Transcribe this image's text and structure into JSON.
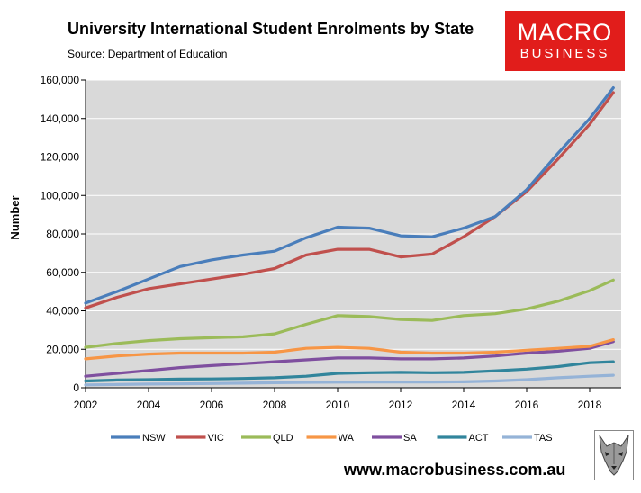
{
  "header": {
    "title": "University International Student Enrolments by State",
    "subtitle": "Source: Department of Education"
  },
  "logo": {
    "line1": "MACRO",
    "line2": "BUSINESS",
    "background": "#e11d1b",
    "text_color": "#ffffff"
  },
  "footer": {
    "url": "www.macrobusiness.com.au",
    "emblem_icon": "wolf-icon"
  },
  "colors": {
    "plot_background": "#d9d9d9",
    "gridline": "#ffffff"
  },
  "chart_data": {
    "type": "line",
    "title": "University International Student Enrolments by State",
    "xlabel": "",
    "ylabel": "Number",
    "xlim": [
      2002,
      2019
    ],
    "ylim": [
      0,
      160000
    ],
    "yticks": [
      0,
      20000,
      40000,
      60000,
      80000,
      100000,
      120000,
      140000,
      160000
    ],
    "ytick_labels": [
      "0",
      "20,000",
      "40,000",
      "60,000",
      "80,000",
      "100,000",
      "120,000",
      "140,000",
      "160,000"
    ],
    "xticks": [
      2002,
      2004,
      2006,
      2008,
      2010,
      2012,
      2014,
      2016,
      2018
    ],
    "xtick_labels": [
      "2002",
      "2004",
      "2006",
      "2008",
      "2010",
      "2012",
      "2014",
      "2016",
      "2018"
    ],
    "grid": true,
    "legend_position": "bottom",
    "x": [
      2002,
      2003,
      2004,
      2005,
      2006,
      2007,
      2008,
      2009,
      2010,
      2011,
      2012,
      2013,
      2014,
      2015,
      2016,
      2017,
      2018,
      2018.75
    ],
    "series": [
      {
        "name": "NSW",
        "color": "#4a7ebb",
        "values": [
          44000,
          50000,
          56500,
          63000,
          66500,
          69000,
          71000,
          78000,
          83500,
          83000,
          79000,
          78500,
          83000,
          89000,
          103000,
          122000,
          140000,
          156000
        ]
      },
      {
        "name": "VIC",
        "color": "#c0504d",
        "values": [
          41500,
          47000,
          51500,
          54000,
          56500,
          59000,
          62000,
          69000,
          72000,
          72000,
          68000,
          69500,
          78500,
          89000,
          102000,
          119000,
          137000,
          153500
        ]
      },
      {
        "name": "QLD",
        "color": "#9bbb59",
        "values": [
          21000,
          23000,
          24500,
          25500,
          26000,
          26500,
          28000,
          33000,
          37500,
          37000,
          35500,
          35000,
          37500,
          38500,
          41000,
          45000,
          50500,
          56000
        ]
      },
      {
        "name": "WA",
        "color": "#f79646",
        "values": [
          15000,
          16500,
          17500,
          18000,
          18000,
          18000,
          18500,
          20500,
          21000,
          20500,
          18500,
          18000,
          18000,
          18500,
          19500,
          20500,
          21500,
          25000
        ]
      },
      {
        "name": "SA",
        "color": "#7f4f9f",
        "values": [
          6000,
          7500,
          9000,
          10500,
          11500,
          12500,
          13500,
          14500,
          15500,
          15500,
          15000,
          15000,
          15500,
          16500,
          18000,
          19000,
          20500,
          24000
        ]
      },
      {
        "name": "ACT",
        "color": "#31859c",
        "values": [
          3500,
          4000,
          4200,
          4500,
          4600,
          4800,
          5200,
          6000,
          7500,
          7800,
          8000,
          7800,
          8000,
          8800,
          9700,
          11000,
          13000,
          13500
        ]
      },
      {
        "name": "TAS",
        "color": "#95b3d7",
        "values": [
          1500,
          1700,
          1900,
          2000,
          2200,
          2400,
          2600,
          2800,
          2900,
          3000,
          3000,
          3000,
          3100,
          3500,
          4200,
          5200,
          6000,
          6500
        ]
      }
    ]
  }
}
